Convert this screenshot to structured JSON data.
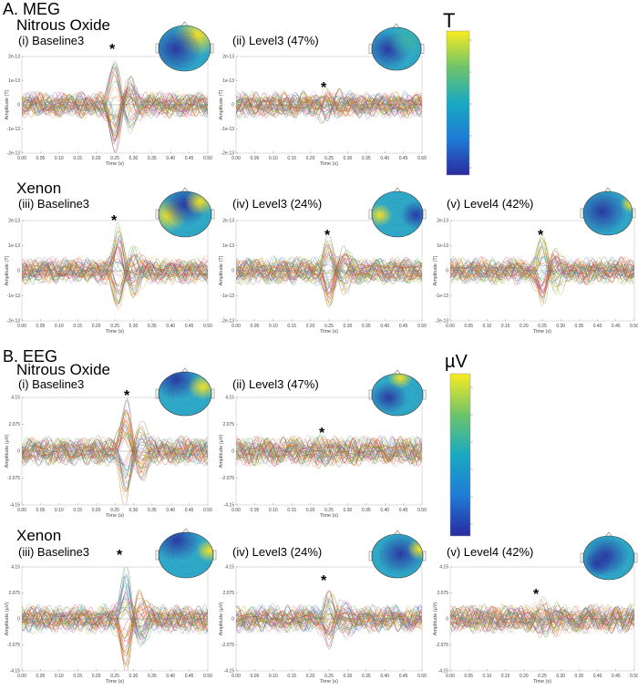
{
  "sections": {
    "meg": {
      "label": "A. MEG",
      "nitrous_label": "Nitrous Oxide",
      "xenon_label": "Xenon",
      "colorbar_unit": "T"
    },
    "eeg": {
      "label": "B. EEG",
      "nitrous_label": "Nitrous Oxide",
      "xenon_label": "Xenon",
      "colorbar_unit": "µV"
    }
  },
  "panels": [
    {
      "id": "meg-n2o-i",
      "title": "(i) Baseline3"
    },
    {
      "id": "meg-n2o-ii",
      "title": "(ii) Level3 (47%)"
    },
    {
      "id": "meg-xe-iii",
      "title": "(iii) Baseline3"
    },
    {
      "id": "meg-xe-iv",
      "title": "(iv) Level3 (24%)"
    },
    {
      "id": "meg-xe-v",
      "title": "(v) Level4 (42%)"
    },
    {
      "id": "eeg-n2o-i",
      "title": "(i) Baseline3"
    },
    {
      "id": "eeg-n2o-ii",
      "title": "(ii) Level3 (47%)"
    },
    {
      "id": "eeg-xe-iii",
      "title": "(iii) Baseline3"
    },
    {
      "id": "eeg-xe-iv",
      "title": "(iv) Level3 (24%)"
    },
    {
      "id": "eeg-xe-v",
      "title": "(v) Level4 (42%)"
    }
  ],
  "star_text": "*",
  "colors": {
    "topo_blue": "#2b3aa3",
    "topo_cyan": "#2fa8c8",
    "topo_teal": "#3bb3a8",
    "topo_yellow": "#f7e224",
    "cbar_stops": [
      "#2a2aa0",
      "#1f7bd6",
      "#19a9c2",
      "#6fc46a",
      "#f9ec1f"
    ]
  },
  "chart_data": [
    {
      "type": "line",
      "panel": "meg-n2o-i",
      "xlabel": "Time (s)",
      "ylabel": "Amplitude (T)",
      "xlim": [
        0,
        0.5
      ],
      "ylim": [
        -2e-13,
        2e-13
      ],
      "xticks": [
        "0.00",
        "0.05",
        "0.10",
        "0.15",
        "0.20",
        "0.25",
        "0.30",
        "0.35",
        "0.40",
        "0.45",
        "0.50"
      ],
      "yticks": [
        "2e-13",
        "1e-13",
        "0",
        "-1e-13",
        "-2e-13"
      ],
      "peak_marker_time": 0.25,
      "peak_amplitude": 1.9e-13
    },
    {
      "type": "line",
      "panel": "meg-n2o-ii",
      "xlabel": "Time (s)",
      "ylabel": "Amplitude (T)",
      "xlim": [
        0,
        0.5
      ],
      "ylim": [
        -2e-13,
        2e-13
      ],
      "xticks": [
        "0.00",
        "0.05",
        "0.10",
        "0.15",
        "0.20",
        "0.25",
        "0.30",
        "0.35",
        "0.40",
        "0.45",
        "0.50"
      ],
      "yticks": [
        "2e-13",
        "1e-13",
        "0",
        "-1e-13",
        "-2e-13"
      ],
      "peak_marker_time": 0.24,
      "peak_amplitude": 4e-14
    },
    {
      "type": "line",
      "panel": "meg-xe-iii",
      "xlabel": "Time (s)",
      "ylabel": "Amplitude (T)",
      "xlim": [
        0,
        0.5
      ],
      "ylim": [
        -2e-13,
        2e-13
      ],
      "xticks": [
        "0.00",
        "0.05",
        "0.10",
        "0.15",
        "0.20",
        "0.25",
        "0.30",
        "0.35",
        "0.40",
        "0.45",
        "0.50"
      ],
      "yticks": [
        "2e-13",
        "1e-13",
        "0",
        "-1e-13",
        "-2e-13"
      ],
      "peak_marker_time": 0.26,
      "peak_amplitude": 1.6e-13
    },
    {
      "type": "line",
      "panel": "meg-xe-iv",
      "xlabel": "Time (s)",
      "ylabel": "Amplitude (T)",
      "xlim": [
        0,
        0.5
      ],
      "ylim": [
        -2e-13,
        2e-13
      ],
      "xticks": [
        "0.00",
        "0.05",
        "0.10",
        "0.15",
        "0.20",
        "0.25",
        "0.30",
        "0.35",
        "0.40",
        "0.45",
        "0.50"
      ],
      "yticks": [
        "2e-13",
        "1e-13",
        "0",
        "-1e-13",
        "-2e-13"
      ],
      "peak_marker_time": 0.25,
      "peak_amplitude": 1.2e-13
    },
    {
      "type": "line",
      "panel": "meg-xe-v",
      "xlabel": "Time (s)",
      "ylabel": "Amplitude (T)",
      "xlim": [
        0,
        0.5
      ],
      "ylim": [
        -2e-13,
        2e-13
      ],
      "xticks": [
        "0.00",
        "0.05",
        "0.10",
        "0.15",
        "0.20",
        "0.25",
        "0.30",
        "0.35",
        "0.40",
        "0.45",
        "0.50"
      ],
      "yticks": [
        "2e-13",
        "1e-13",
        "0",
        "-1e-13",
        "-2e-13"
      ],
      "peak_marker_time": 0.25,
      "peak_amplitude": 1.2e-13
    },
    {
      "type": "line",
      "panel": "eeg-n2o-i",
      "xlabel": "Time (s)",
      "ylabel": "Amplitude (µV)",
      "xlim": [
        0,
        0.5
      ],
      "ylim": [
        -4.15,
        4.15
      ],
      "xticks": [
        "0.00",
        "0.05",
        "0.10",
        "0.15",
        "0.20",
        "0.25",
        "0.30",
        "0.35",
        "0.40",
        "0.45",
        "0.50"
      ],
      "yticks": [
        "4.15",
        "2.075",
        "0",
        "-2.075",
        "-4.15"
      ],
      "peak_marker_time": 0.28,
      "peak_amplitude": 3.9
    },
    {
      "type": "line",
      "panel": "eeg-n2o-ii",
      "xlabel": "Time (s)",
      "ylabel": "Amplitude (µV)",
      "xlim": [
        0,
        0.5
      ],
      "ylim": [
        -4.15,
        4.15
      ],
      "xticks": [
        "0.00",
        "0.05",
        "0.10",
        "0.15",
        "0.20",
        "0.25",
        "0.30",
        "0.35",
        "0.40",
        "0.45",
        "0.50"
      ],
      "yticks": [
        "4.15",
        "2.075",
        "0",
        "-2.075",
        "-4.15"
      ],
      "peak_marker_time": 0.24,
      "peak_amplitude": 0.6
    },
    {
      "type": "line",
      "panel": "eeg-xe-iii",
      "xlabel": "Time (s)",
      "ylabel": "Amplitude (µV)",
      "xlim": [
        0,
        0.5
      ],
      "ylim": [
        -4.15,
        4.15
      ],
      "xticks": [
        "0.00",
        "0.05",
        "0.10",
        "0.15",
        "0.20",
        "0.25",
        "0.30",
        "0.35",
        "0.40",
        "0.45",
        "0.50"
      ],
      "yticks": [
        "4.15",
        "2.075",
        "0",
        "-2.075",
        "-4.15"
      ],
      "peak_marker_time": 0.28,
      "peak_amplitude": 4.0
    },
    {
      "type": "line",
      "panel": "eeg-xe-iv",
      "xlabel": "Time (s)",
      "ylabel": "Amplitude (µV)",
      "xlim": [
        0,
        0.5
      ],
      "ylim": [
        -4.15,
        4.15
      ],
      "xticks": [
        "0.00",
        "0.05",
        "0.10",
        "0.15",
        "0.20",
        "0.25",
        "0.30",
        "0.35",
        "0.40",
        "0.45",
        "0.50"
      ],
      "yticks": [
        "4.15",
        "2.075",
        "0",
        "-2.075",
        "-4.15"
      ],
      "peak_marker_time": 0.25,
      "peak_amplitude": 2.0
    },
    {
      "type": "line",
      "panel": "eeg-xe-v",
      "xlabel": "Time (s)",
      "ylabel": "Amplitude (µV)",
      "xlim": [
        0,
        0.5
      ],
      "ylim": [
        -4.15,
        4.15
      ],
      "xticks": [
        "0.00",
        "0.05",
        "0.10",
        "0.15",
        "0.20",
        "0.25",
        "0.30",
        "0.35",
        "0.40",
        "0.45",
        "0.50"
      ],
      "yticks": [
        "4.15",
        "2.075",
        "0",
        "-2.075",
        "-4.15"
      ],
      "peak_marker_time": 0.25,
      "peak_amplitude": 1.0
    }
  ]
}
